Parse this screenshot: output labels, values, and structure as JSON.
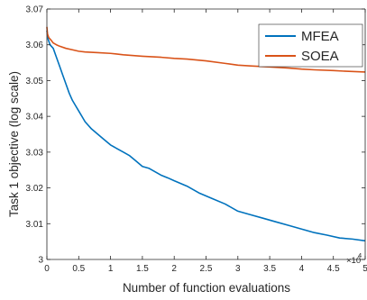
{
  "chart_data": {
    "type": "line",
    "xlabel": "Number of function evaluations",
    "ylabel": "Task 1 objective (log scale)",
    "x_exponent_label": "×10",
    "x_exponent_power": "4",
    "x_scale_factor": 10000,
    "xlim": [
      0,
      50000
    ],
    "ylim": [
      3.0,
      3.07
    ],
    "x_ticks": [
      0,
      5000,
      10000,
      15000,
      20000,
      25000,
      30000,
      35000,
      40000,
      45000,
      50000
    ],
    "x_tick_labels": [
      "0",
      "0.5",
      "1",
      "1.5",
      "2",
      "2.5",
      "3",
      "3.5",
      "4",
      "4.5",
      "5"
    ],
    "y_ticks": [
      3.0,
      3.01,
      3.02,
      3.03,
      3.04,
      3.05,
      3.06,
      3.07
    ],
    "y_tick_labels": [
      "3",
      "3.01",
      "3.02",
      "3.03",
      "3.04",
      "3.05",
      "3.06",
      "3.07"
    ],
    "grid": false,
    "legend_position": "top-right",
    "series": [
      {
        "name": "MFEA",
        "color": "#0072BD",
        "x": [
          0,
          200,
          500,
          1000,
          1500,
          2000,
          2500,
          3000,
          3500,
          4000,
          4500,
          5000,
          5500,
          6000,
          7000,
          8000,
          9000,
          10000,
          11000,
          12000,
          13000,
          14000,
          15000,
          16000,
          17000,
          18000,
          19000,
          20000,
          22000,
          24000,
          26000,
          28000,
          30000,
          32000,
          34000,
          36000,
          38000,
          40000,
          42000,
          44000,
          46000,
          48000,
          50000
        ],
        "y": [
          3.064,
          3.0615,
          3.06,
          3.059,
          3.0565,
          3.054,
          3.0515,
          3.049,
          3.0465,
          3.0445,
          3.043,
          3.0415,
          3.04,
          3.0385,
          3.0365,
          3.035,
          3.0335,
          3.032,
          3.031,
          3.03,
          3.029,
          3.0275,
          3.026,
          3.0255,
          3.0245,
          3.0235,
          3.0228,
          3.022,
          3.0205,
          3.0185,
          3.017,
          3.0155,
          3.0135,
          3.0125,
          3.0115,
          3.0105,
          3.0095,
          3.0085,
          3.0075,
          3.0068,
          3.006,
          3.0057,
          3.0052
        ]
      },
      {
        "name": "SOEA",
        "color": "#D95319",
        "x": [
          0,
          100,
          300,
          700,
          1000,
          1500,
          2000,
          3000,
          4000,
          5000,
          6000,
          8000,
          10000,
          12000,
          15000,
          18000,
          20000,
          22000,
          25000,
          28000,
          30000,
          32000,
          35000,
          38000,
          40000,
          42000,
          45000,
          47000,
          50000
        ],
        "y": [
          3.065,
          3.063,
          3.062,
          3.0612,
          3.0605,
          3.06,
          3.0596,
          3.059,
          3.0586,
          3.0582,
          3.058,
          3.0578,
          3.0576,
          3.0572,
          3.0568,
          3.0565,
          3.0562,
          3.056,
          3.0555,
          3.0548,
          3.0543,
          3.0541,
          3.0538,
          3.0535,
          3.0532,
          3.053,
          3.0528,
          3.0526,
          3.0524
        ]
      }
    ]
  }
}
